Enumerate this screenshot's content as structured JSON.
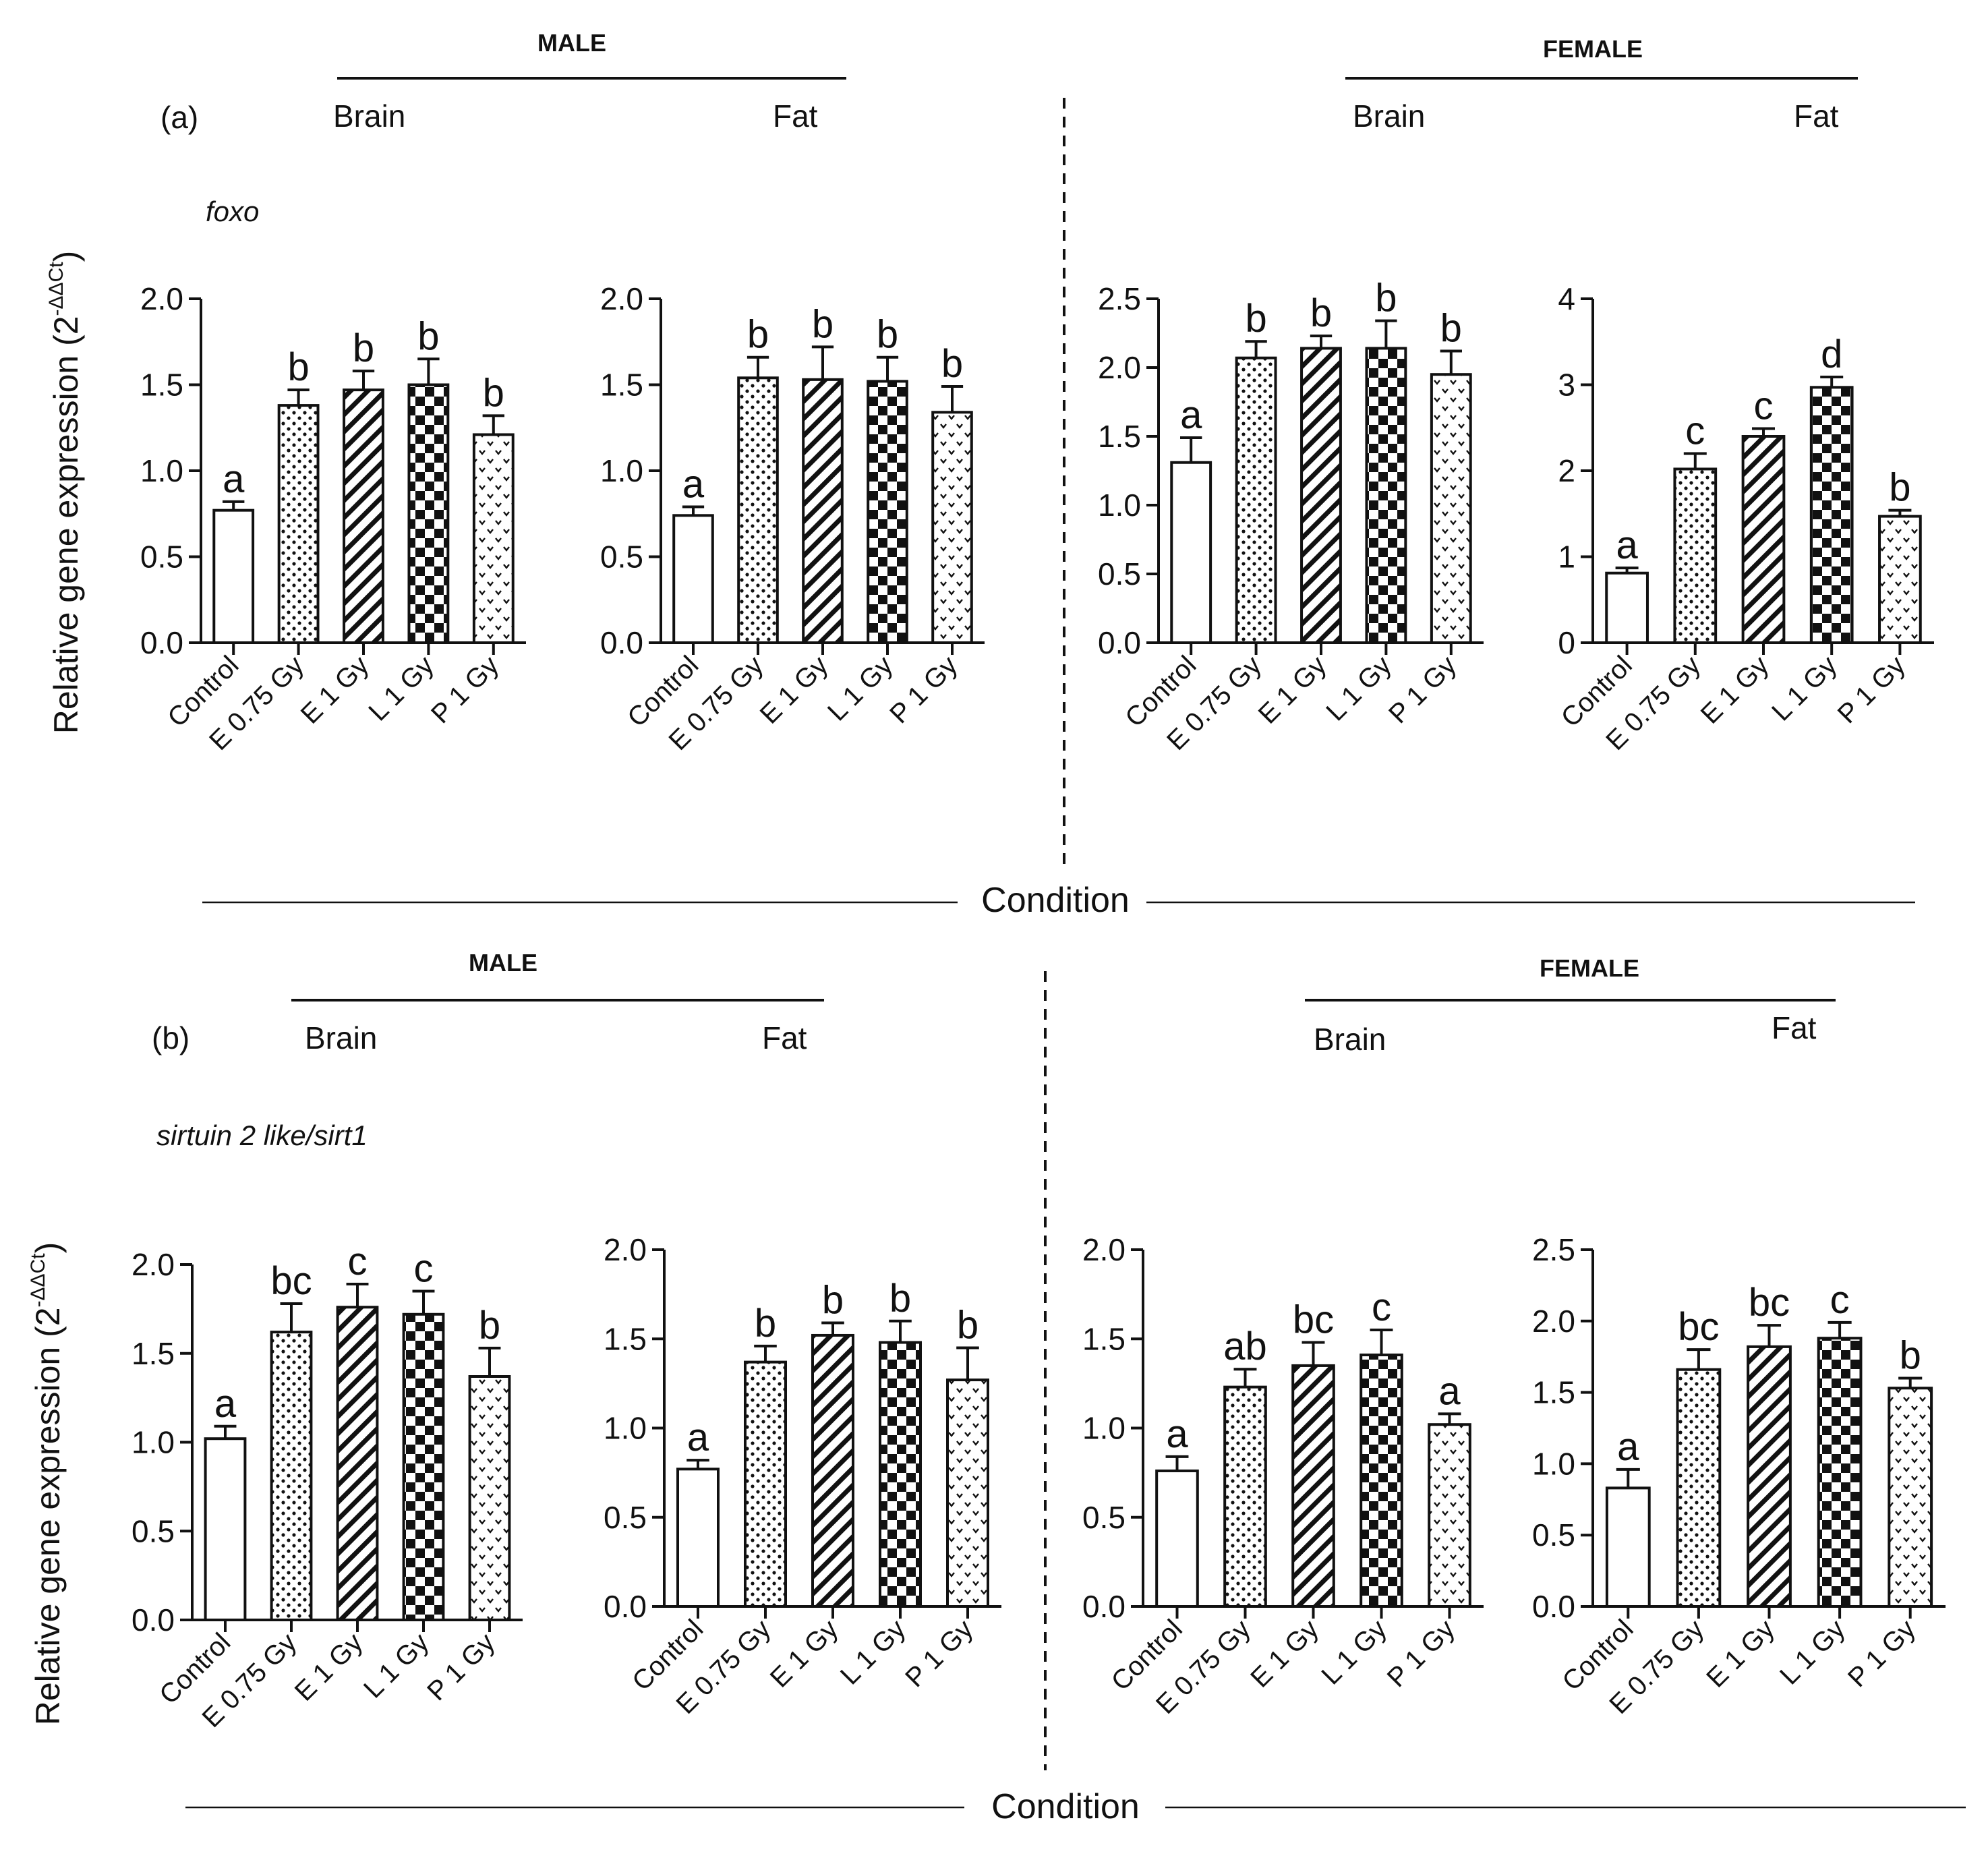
{
  "figure": {
    "rows": [
      {
        "panel_label": "(a)",
        "gene": "foxo",
        "ylabel": "Relative gene expression (2",
        "ylabel_sup": "-ΔΔCt",
        "ylabel_close": ")",
        "xlabel": "Condition",
        "groups": [
          {
            "sex": "MALE",
            "tissues": [
              "Brain",
              "Fat"
            ]
          },
          {
            "sex": "FEMALE",
            "tissues": [
              "Brain",
              "Fat"
            ]
          }
        ]
      },
      {
        "panel_label": "(b)",
        "gene": "sirtuin 2 like/sirt1",
        "ylabel": "Relative gene expression (2",
        "ylabel_sup": "-ΔΔCt",
        "ylabel_close": ")",
        "xlabel": "Condition",
        "groups": [
          {
            "sex": "MALE",
            "tissues": [
              "Brain",
              "Fat"
            ]
          },
          {
            "sex": "FEMALE",
            "tissues": [
              "Brain",
              "Fat"
            ]
          }
        ]
      }
    ],
    "bar_color": "#111111"
  },
  "chart_data": [
    {
      "type": "bar",
      "row": 0,
      "sex": "MALE",
      "tissue": "Brain",
      "categories": [
        "Control",
        "E 0.75 Gy",
        "E 1 Gy",
        "L 1 Gy",
        "P 1 Gy"
      ],
      "values": [
        0.77,
        1.38,
        1.47,
        1.5,
        1.21
      ],
      "errors": [
        0.05,
        0.09,
        0.11,
        0.15,
        0.11
      ],
      "letters": [
        "a",
        "b",
        "b",
        "b",
        "b"
      ],
      "patterns": [
        "open",
        "dots",
        "hatch",
        "checker",
        "chevron"
      ],
      "ylim": [
        0,
        2.0
      ],
      "yticks": [
        "0.0",
        "0.5",
        "1.0",
        "1.5",
        "2.0"
      ],
      "ytick_values": [
        0,
        0.5,
        1.0,
        1.5,
        2.0
      ],
      "ylabel": "Relative gene expression (2^-ΔΔCt)",
      "xlabel": "Condition"
    },
    {
      "type": "bar",
      "row": 0,
      "sex": "MALE",
      "tissue": "Fat",
      "categories": [
        "Control",
        "E 0.75 Gy",
        "E 1 Gy",
        "L 1 Gy",
        "P 1 Gy"
      ],
      "values": [
        0.74,
        1.54,
        1.53,
        1.52,
        1.34
      ],
      "errors": [
        0.05,
        0.12,
        0.19,
        0.14,
        0.15
      ],
      "letters": [
        "a",
        "b",
        "b",
        "b",
        "b"
      ],
      "patterns": [
        "open",
        "dots",
        "hatch",
        "checker",
        "chevron"
      ],
      "ylim": [
        0,
        2.0
      ],
      "yticks": [
        "0.0",
        "0.5",
        "1.0",
        "1.5",
        "2.0"
      ],
      "ytick_values": [
        0,
        0.5,
        1.0,
        1.5,
        2.0
      ],
      "ylabel": "Relative gene expression (2^-ΔΔCt)",
      "xlabel": "Condition"
    },
    {
      "type": "bar",
      "row": 0,
      "sex": "FEMALE",
      "tissue": "Brain",
      "categories": [
        "Control",
        "E 0.75 Gy",
        "E 1 Gy",
        "L 1 Gy",
        "P 1 Gy"
      ],
      "values": [
        1.31,
        2.07,
        2.14,
        2.14,
        1.95
      ],
      "errors": [
        0.18,
        0.12,
        0.09,
        0.2,
        0.17
      ],
      "letters": [
        "a",
        "b",
        "b",
        "b",
        "b"
      ],
      "patterns": [
        "open",
        "dots",
        "hatch",
        "checker",
        "chevron"
      ],
      "ylim": [
        0,
        2.5
      ],
      "yticks": [
        "0.0",
        "0.5",
        "1.0",
        "1.5",
        "2.0",
        "2.5"
      ],
      "ytick_values": [
        0,
        0.5,
        1.0,
        1.5,
        2.0,
        2.5
      ],
      "ylabel": "Relative gene expression (2^-ΔΔCt)",
      "xlabel": "Condition"
    },
    {
      "type": "bar",
      "row": 0,
      "sex": "FEMALE",
      "tissue": "Fat",
      "categories": [
        "Control",
        "E 0.75 Gy",
        "E 1 Gy",
        "L 1 Gy",
        "P 1 Gy"
      ],
      "values": [
        0.81,
        2.02,
        2.4,
        2.97,
        1.47
      ],
      "errors": [
        0.06,
        0.18,
        0.09,
        0.12,
        0.07
      ],
      "letters": [
        "a",
        "c",
        "c",
        "d",
        "b"
      ],
      "patterns": [
        "open",
        "dots",
        "hatch",
        "checker",
        "chevron"
      ],
      "ylim": [
        0,
        4
      ],
      "yticks": [
        "0",
        "1",
        "2",
        "3",
        "4"
      ],
      "ytick_values": [
        0,
        1,
        2,
        3,
        4
      ],
      "ylabel": "Relative gene expression (2^-ΔΔCt)",
      "xlabel": "Condition"
    },
    {
      "type": "bar",
      "row": 1,
      "sex": "MALE",
      "tissue": "Brain",
      "categories": [
        "Control",
        "E 0.75 Gy",
        "E 1 Gy",
        "L 1 Gy",
        "P 1 Gy"
      ],
      "values": [
        1.02,
        1.62,
        1.76,
        1.72,
        1.37
      ],
      "errors": [
        0.07,
        0.16,
        0.13,
        0.13,
        0.16
      ],
      "letters": [
        "a",
        "bc",
        "c",
        "c",
        "b"
      ],
      "patterns": [
        "open",
        "dots",
        "hatch",
        "checker",
        "chevron"
      ],
      "ylim": [
        0,
        2.0
      ],
      "yticks": [
        "0.0",
        "0.5",
        "1.0",
        "1.5",
        "2.0"
      ],
      "ytick_values": [
        0,
        0.5,
        1.0,
        1.5,
        2.0
      ],
      "ylabel": "Relative gene expression (2^-ΔΔCt)",
      "xlabel": "Condition"
    },
    {
      "type": "bar",
      "row": 1,
      "sex": "MALE",
      "tissue": "Fat",
      "categories": [
        "Control",
        "E 0.75 Gy",
        "E 1 Gy",
        "L 1 Gy",
        "P 1 Gy"
      ],
      "values": [
        0.77,
        1.37,
        1.52,
        1.48,
        1.27
      ],
      "errors": [
        0.05,
        0.09,
        0.07,
        0.12,
        0.18
      ],
      "letters": [
        "a",
        "b",
        "b",
        "b",
        "b"
      ],
      "patterns": [
        "open",
        "dots",
        "hatch",
        "checker",
        "chevron"
      ],
      "ylim": [
        0,
        2.0
      ],
      "yticks": [
        "0.0",
        "0.5",
        "1.0",
        "1.5",
        "2.0"
      ],
      "ytick_values": [
        0,
        0.5,
        1.0,
        1.5,
        2.0
      ],
      "ylabel": "Relative gene expression (2^-ΔΔCt)",
      "xlabel": "Condition"
    },
    {
      "type": "bar",
      "row": 1,
      "sex": "FEMALE",
      "tissue": "Brain",
      "categories": [
        "Control",
        "E 0.75 Gy",
        "E 1 Gy",
        "L 1 Gy",
        "P 1 Gy"
      ],
      "values": [
        0.76,
        1.23,
        1.35,
        1.41,
        1.02
      ],
      "errors": [
        0.08,
        0.1,
        0.13,
        0.14,
        0.06
      ],
      "letters": [
        "a",
        "ab",
        "bc",
        "c",
        "a"
      ],
      "patterns": [
        "open",
        "dots",
        "hatch",
        "checker",
        "chevron"
      ],
      "ylim": [
        0,
        2.0
      ],
      "yticks": [
        "0.0",
        "0.5",
        "1.0",
        "1.5",
        "2.0"
      ],
      "ytick_values": [
        0,
        0.5,
        1.0,
        1.5,
        2.0
      ],
      "ylabel": "Relative gene expression (2^-ΔΔCt)",
      "xlabel": "Condition"
    },
    {
      "type": "bar",
      "row": 1,
      "sex": "FEMALE",
      "tissue": "Fat",
      "categories": [
        "Control",
        "E 0.75 Gy",
        "E 1 Gy",
        "L 1 Gy",
        "P 1 Gy"
      ],
      "values": [
        0.83,
        1.66,
        1.82,
        1.88,
        1.53
      ],
      "errors": [
        0.13,
        0.14,
        0.15,
        0.11,
        0.07
      ],
      "letters": [
        "a",
        "bc",
        "bc",
        "c",
        "b"
      ],
      "patterns": [
        "open",
        "dots",
        "hatch",
        "checker",
        "chevron"
      ],
      "ylim": [
        0,
        2.5
      ],
      "yticks": [
        "0.0",
        "0.5",
        "1.0",
        "1.5",
        "2.0",
        "2.5"
      ],
      "ytick_values": [
        0,
        0.5,
        1.0,
        1.5,
        2.0,
        2.5
      ],
      "ylabel": "Relative gene expression (2^-ΔΔCt)",
      "xlabel": "Condition"
    }
  ]
}
